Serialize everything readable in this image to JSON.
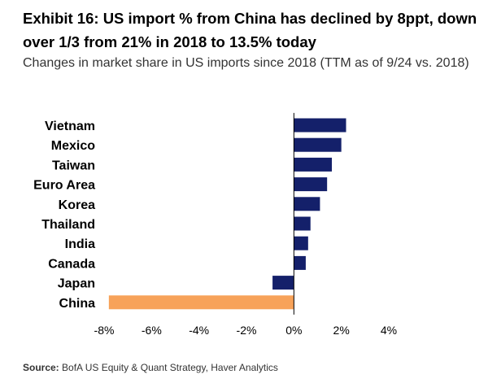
{
  "title": "Exhibit 16: US import % from China has declined by 8ppt, down over 1/3 from 21% in 2018 to 13.5% today",
  "subtitle": "Changes in market share in US imports since 2018 (TTM as of 9/24 vs. 2018)",
  "source": {
    "label": "Source:",
    "text": "BofA US Equity & Quant Strategy, Haver Analytics"
  },
  "colors": {
    "bar": "#14206a",
    "highlight": "#f7a259",
    "axis": "#000000"
  },
  "chart_data": {
    "type": "bar",
    "orientation": "horizontal",
    "categories": [
      "Vietnam",
      "Mexico",
      "Taiwan",
      "Euro Area",
      "Korea",
      "Thailand",
      "India",
      "Canada",
      "Japan",
      "China"
    ],
    "values": [
      2.2,
      2.0,
      1.6,
      1.4,
      1.1,
      0.7,
      0.6,
      0.5,
      -0.9,
      -7.8
    ],
    "highlight": [
      "China"
    ],
    "xlim": [
      -8,
      4
    ],
    "xticks": [
      -8,
      -6,
      -4,
      -2,
      0,
      2,
      4
    ],
    "xtick_labels": [
      "-8%",
      "-6%",
      "-4%",
      "-2%",
      "0%",
      "2%",
      "4%"
    ],
    "title": "Exhibit 16: US import % from China has declined by 8ppt, down over 1/3 from 21% in 2018 to 13.5% today",
    "xlabel": "",
    "ylabel": "",
    "unit": "%",
    "grid": false,
    "legend": false
  }
}
